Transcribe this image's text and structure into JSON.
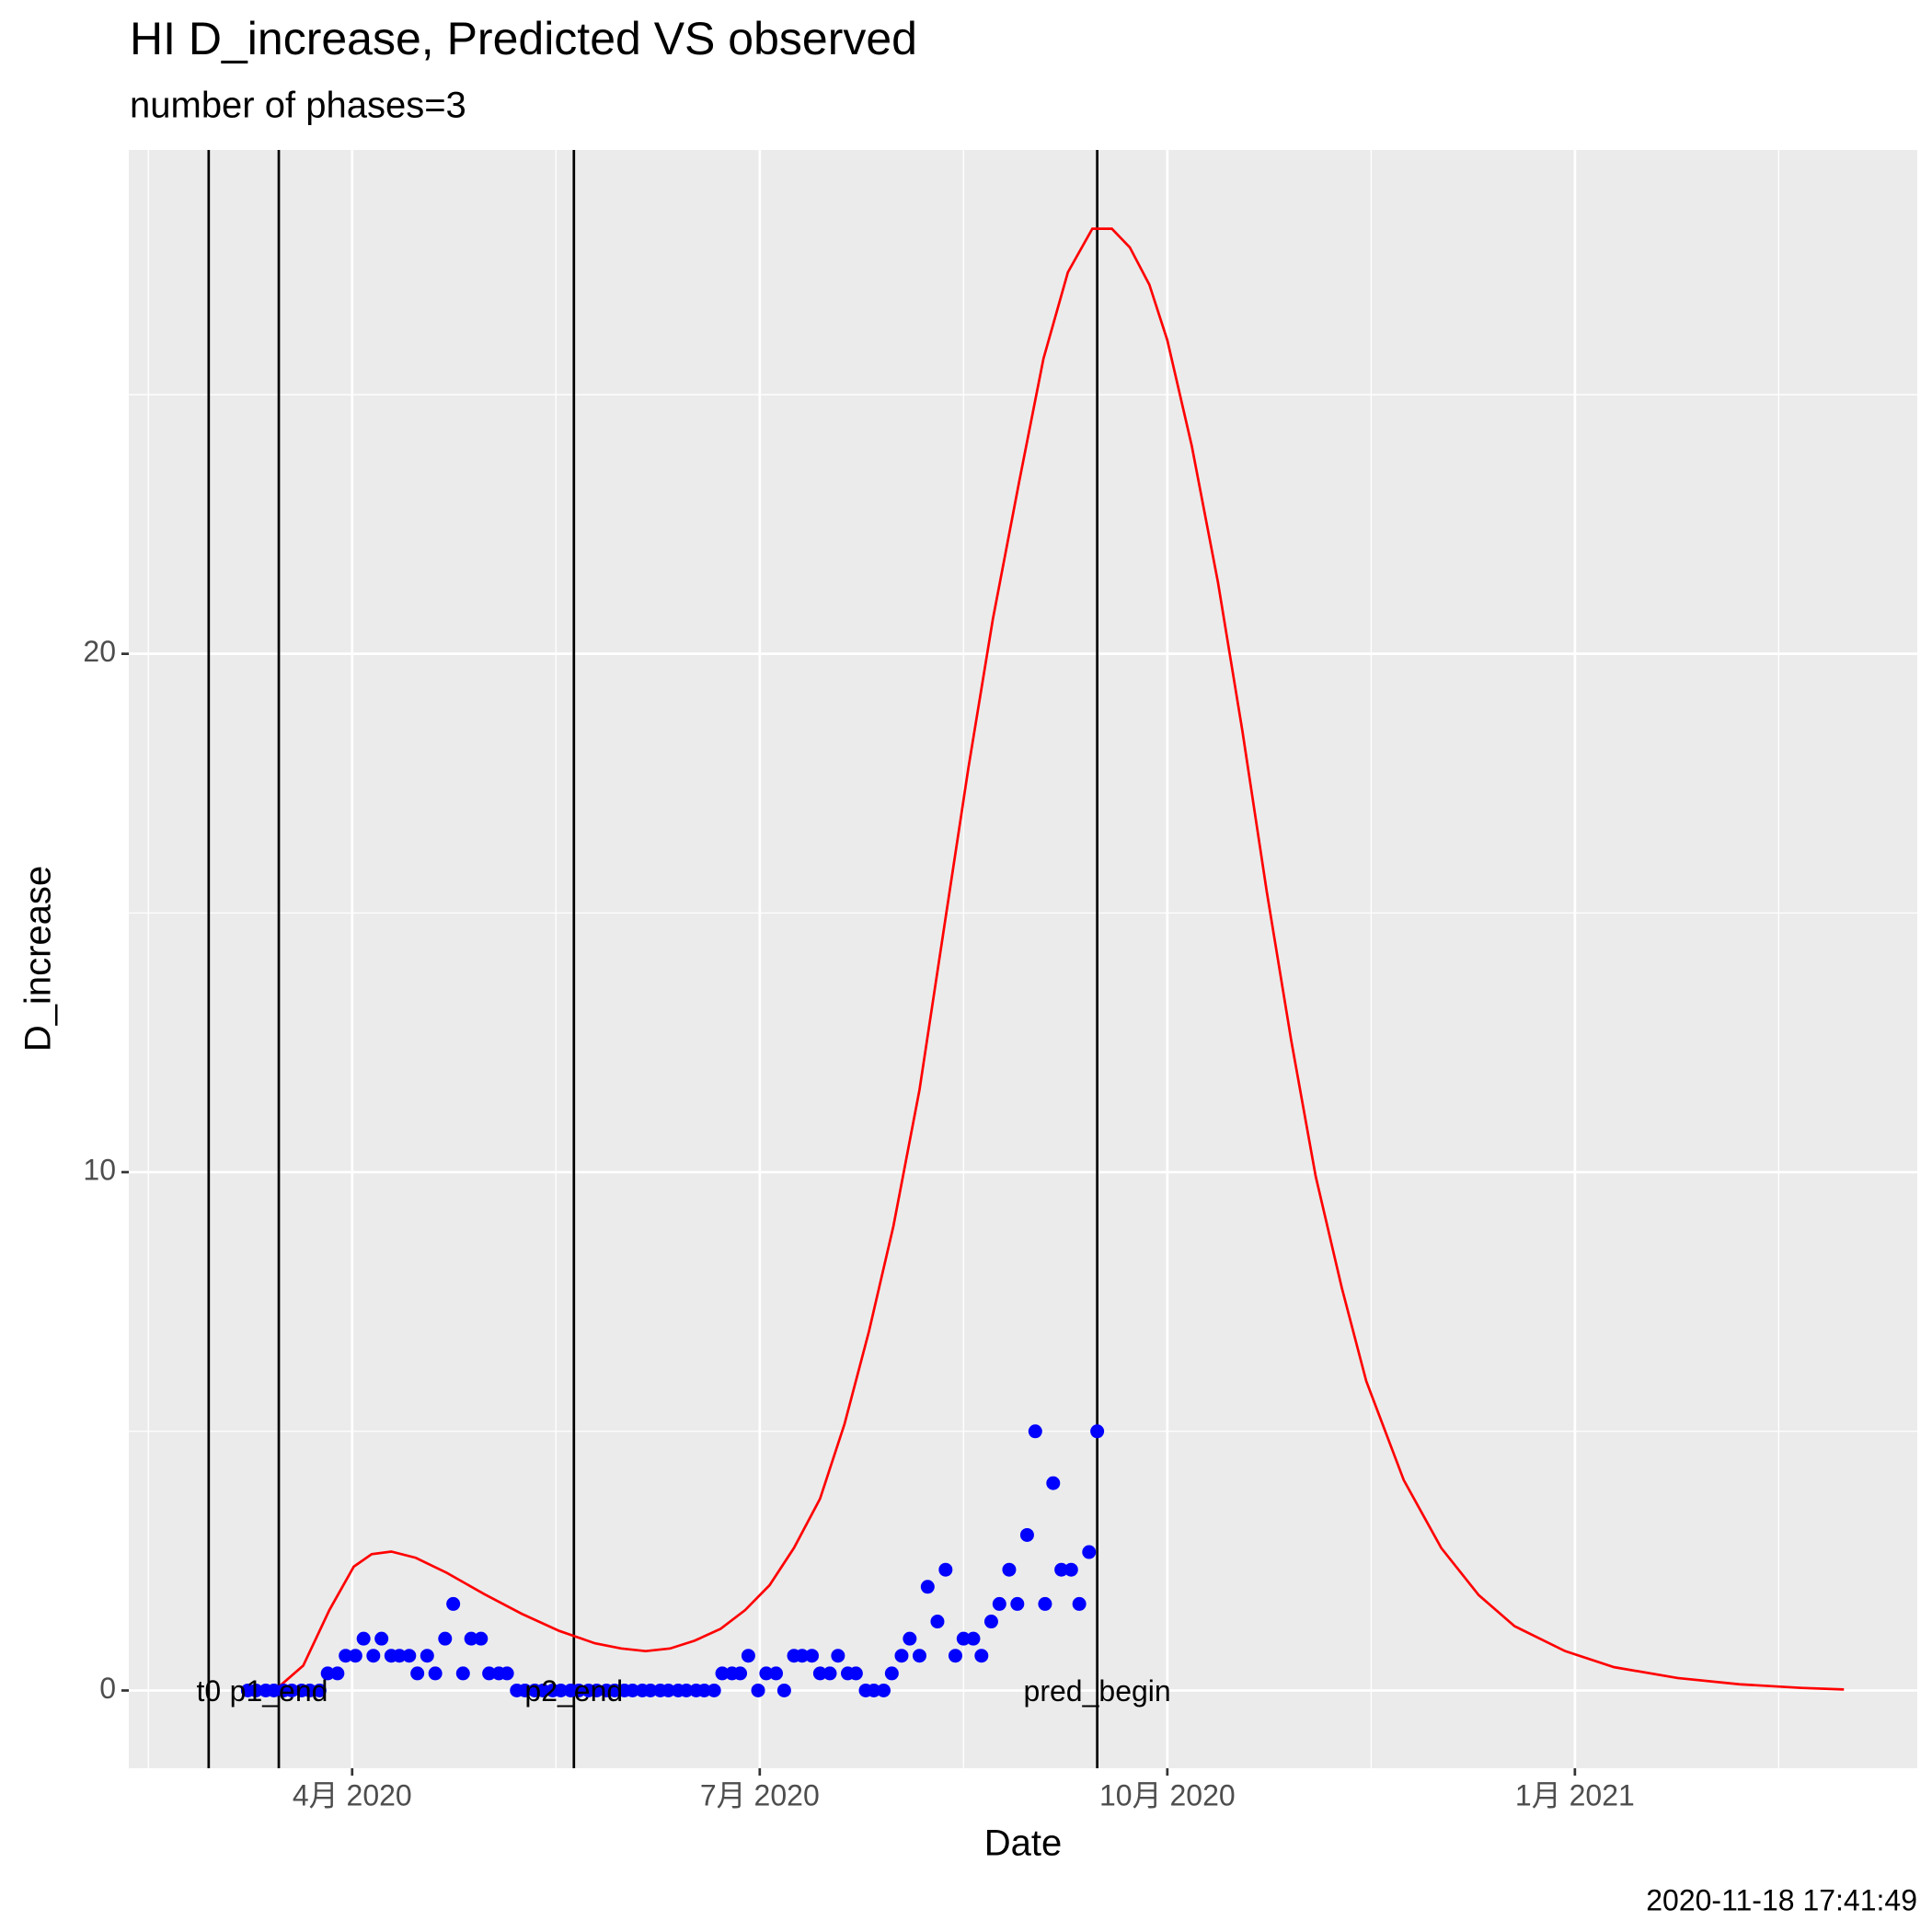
{
  "chart_data": {
    "type": "line",
    "title": "HI D_increase, Predicted VS observed",
    "subtitle": "number of phases=3",
    "x_label": "Date",
    "y_label": "D_increase",
    "caption": "2020-11-18 17:41:49",
    "xlim": [
      2020.113,
      2021.21
    ],
    "xticks": [
      {
        "value": 2020.25,
        "label": "4月 2020"
      },
      {
        "value": 2020.5,
        "label": "7月 2020"
      },
      {
        "value": 2020.75,
        "label": "10月 2020"
      },
      {
        "value": 2021.0,
        "label": "1月 2021"
      }
    ],
    "ylim": [
      -1.5,
      29.72
    ],
    "yticks": [
      0,
      10,
      20
    ],
    "grid": true,
    "vlines": [
      {
        "x": 2020.162,
        "label": "t0"
      },
      {
        "x": 2020.205,
        "label": "p1_end"
      },
      {
        "x": 2020.386,
        "label": "p2_end"
      },
      {
        "x": 2020.707,
        "label": "pred_begin"
      }
    ],
    "series": [
      {
        "type": "line",
        "color": "#ff0000",
        "x": [
          2020.186,
          2020.205,
          2020.22,
          2020.236,
          2020.251,
          2020.262,
          2020.274,
          2020.289,
          2020.308,
          2020.331,
          2020.354,
          2020.377,
          2020.399,
          2020.415,
          2020.43,
          2020.445,
          2020.46,
          2020.476,
          2020.491,
          2020.506,
          2020.521,
          2020.537,
          2020.552,
          2020.567,
          2020.582,
          2020.598,
          2020.613,
          2020.628,
          2020.643,
          2020.659,
          2020.674,
          2020.689,
          2020.704,
          2020.716,
          2020.727,
          2020.739,
          2020.75,
          2020.765,
          2020.781,
          2020.796,
          2020.811,
          2020.826,
          2020.841,
          2020.857,
          2020.872,
          2020.895,
          2020.918,
          2020.941,
          2020.963,
          2020.994,
          2021.024,
          2021.063,
          2021.101,
          2021.139,
          2021.165
        ],
        "values": [
          0,
          0.07,
          0.48,
          1.55,
          2.39,
          2.63,
          2.68,
          2.56,
          2.27,
          1.86,
          1.48,
          1.15,
          0.91,
          0.81,
          0.76,
          0.81,
          0.96,
          1.19,
          1.55,
          2.03,
          2.75,
          3.7,
          5.14,
          6.93,
          8.96,
          11.59,
          14.7,
          17.8,
          20.67,
          23.3,
          25.69,
          27.36,
          28.2,
          28.2,
          27.84,
          27.12,
          26.05,
          24.01,
          21.39,
          18.52,
          15.41,
          12.54,
          9.92,
          7.77,
          5.97,
          4.06,
          2.75,
          1.84,
          1.24,
          0.76,
          0.45,
          0.24,
          0.12,
          0.05,
          0.02
        ]
      },
      {
        "type": "scatter",
        "color": "#0000ff",
        "x": [
          2020.186,
          2020.191,
          2020.197,
          2020.202,
          2020.208,
          2020.213,
          2020.219,
          2020.224,
          2020.23,
          2020.235,
          2020.241,
          2020.246,
          2020.252,
          2020.257,
          2020.263,
          2020.268,
          2020.274,
          2020.279,
          2020.285,
          2020.29,
          2020.296,
          2020.301,
          2020.307,
          2020.312,
          2020.318,
          2020.323,
          2020.329,
          2020.334,
          2020.34,
          2020.345,
          2020.351,
          2020.356,
          2020.362,
          2020.367,
          2020.373,
          2020.378,
          2020.384,
          2020.389,
          2020.395,
          2020.4,
          2020.406,
          2020.411,
          2020.417,
          2020.422,
          2020.428,
          2020.433,
          2020.439,
          2020.444,
          2020.45,
          2020.455,
          2020.461,
          2020.466,
          2020.472,
          2020.477,
          2020.483,
          2020.488,
          2020.493,
          2020.499,
          2020.504,
          2020.51,
          2020.515,
          2020.521,
          2020.526,
          2020.532,
          2020.537,
          2020.543,
          2020.548,
          2020.554,
          2020.559,
          2020.565,
          2020.57,
          2020.576,
          2020.581,
          2020.587,
          2020.592,
          2020.598,
          2020.603,
          2020.609,
          2020.614,
          2020.62,
          2020.625,
          2020.631,
          2020.636,
          2020.642,
          2020.647,
          2020.653,
          2020.658,
          2020.664,
          2020.669,
          2020.675,
          2020.68,
          2020.685,
          2020.691,
          2020.696,
          2020.702,
          2020.707
        ],
        "values": [
          0,
          0,
          0,
          0,
          0,
          0,
          0,
          0,
          0,
          0.33,
          0.33,
          0.67,
          0.67,
          1,
          0.67,
          1,
          0.67,
          0.67,
          0.67,
          0.33,
          0.67,
          0.33,
          1,
          1.67,
          0.33,
          1,
          1,
          0.33,
          0.33,
          0.33,
          0,
          0,
          0,
          0,
          0,
          0,
          0,
          0,
          0,
          0,
          0,
          0,
          0,
          0,
          0,
          0,
          0,
          0,
          0,
          0,
          0,
          0,
          0,
          0.33,
          0.33,
          0.33,
          0.67,
          0,
          0.33,
          0.33,
          0,
          0.67,
          0.67,
          0.67,
          0.33,
          0.33,
          0.67,
          0.33,
          0.33,
          0,
          0,
          0,
          0.33,
          0.67,
          1,
          0.67,
          2,
          1.33,
          2.33,
          0.67,
          1,
          1,
          0.67,
          1.33,
          1.67,
          2.33,
          1.67,
          3,
          5,
          1.67,
          4,
          2.33,
          2.33,
          1.67,
          2.67,
          5
        ]
      }
    ]
  }
}
